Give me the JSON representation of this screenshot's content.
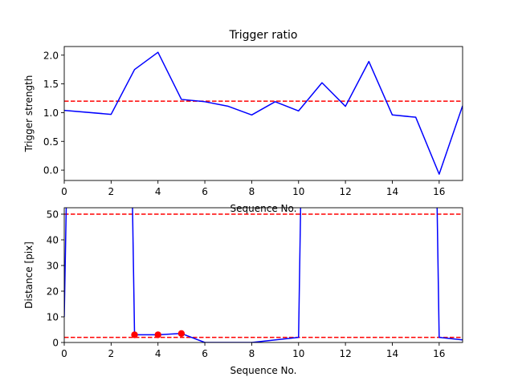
{
  "chart_data": [
    {
      "type": "line",
      "title": "Trigger ratio",
      "xlabel": "Sequence No.",
      "ylabel": "Trigger strength",
      "xlim": [
        0,
        17
      ],
      "ylim": [
        -0.18,
        2.15
      ],
      "xticks": [
        0,
        2,
        4,
        6,
        8,
        10,
        12,
        14,
        16
      ],
      "yticks": [
        0.0,
        0.5,
        1.0,
        1.5,
        2.0
      ],
      "ytick_labels": [
        "0.0",
        "0.5",
        "1.0",
        "1.5",
        "2.0"
      ],
      "grid": false,
      "series": [
        {
          "color": "#0000ff",
          "x": [
            0,
            2,
            3,
            4,
            5,
            6,
            7,
            8,
            9,
            10,
            11,
            12,
            13,
            14,
            15,
            16,
            17
          ],
          "y": [
            1.04,
            0.97,
            1.75,
            2.05,
            1.23,
            1.19,
            1.11,
            0.96,
            1.19,
            1.03,
            1.52,
            1.11,
            1.89,
            0.96,
            0.92,
            -0.07,
            1.12
          ]
        }
      ],
      "reference_lines": [
        {
          "y": 1.2,
          "color": "#ff0000",
          "style": "dashed"
        }
      ]
    },
    {
      "type": "line",
      "title": "",
      "xlabel": "Sequence No.",
      "ylabel": "Distance [pix]",
      "xlim": [
        0,
        17
      ],
      "ylim": [
        0,
        52.5
      ],
      "xticks": [
        0,
        2,
        4,
        6,
        8,
        10,
        12,
        14,
        16
      ],
      "yticks": [
        0,
        10,
        20,
        30,
        40,
        50
      ],
      "ytick_labels": [
        "0",
        "10",
        "20",
        "30",
        "40",
        "50"
      ],
      "grid": false,
      "series": [
        {
          "color": "#0000ff",
          "x": [
            0,
            0.1,
            2.9,
            3,
            4,
            5,
            6,
            8,
            10,
            10.1,
            15.9,
            16,
            17
          ],
          "y": [
            10,
            60,
            60,
            3,
            3,
            3.5,
            0,
            0,
            2,
            60,
            60,
            2,
            1
          ]
        }
      ],
      "markers": {
        "color": "#ff0000",
        "x": [
          3,
          4,
          5
        ],
        "y": [
          3,
          3,
          3.5
        ]
      },
      "reference_lines": [
        {
          "y": 50,
          "color": "#ff0000",
          "style": "dashed"
        },
        {
          "y": 2,
          "color": "#ff0000",
          "style": "dashed"
        }
      ]
    }
  ]
}
